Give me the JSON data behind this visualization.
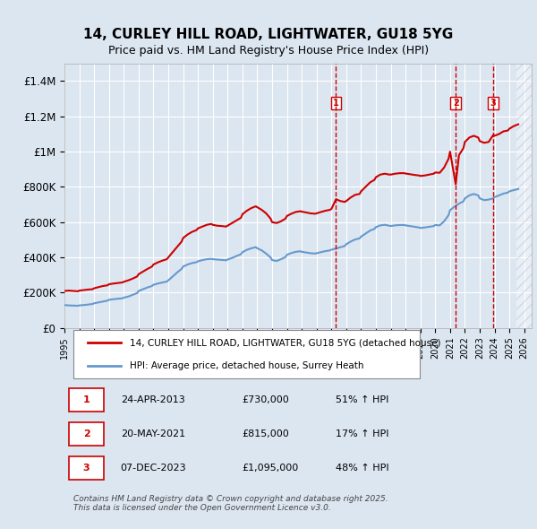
{
  "title": "14, CURLEY HILL ROAD, LIGHTWATER, GU18 5YG",
  "subtitle": "Price paid vs. HM Land Registry's House Price Index (HPI)",
  "title_fontsize": 11,
  "subtitle_fontsize": 9,
  "ylabel": "",
  "xlabel": "",
  "ylim": [
    0,
    1500000
  ],
  "xlim_start": 1995.0,
  "xlim_end": 2026.5,
  "yticks": [
    0,
    200000,
    400000,
    600000,
    800000,
    1000000,
    1200000,
    1400000
  ],
  "ytick_labels": [
    "£0",
    "£200K",
    "£400K",
    "£600K",
    "£800K",
    "£1M",
    "£1.2M",
    "£1.4M"
  ],
  "background_color": "#dce6f1",
  "plot_bg_color": "#dce6f1",
  "grid_color": "#ffffff",
  "hatch_color": "#c0c0c0",
  "red_line_color": "#cc0000",
  "blue_line_color": "#6699cc",
  "transaction_line_color": "#cc0000",
  "transactions": [
    {
      "num": 1,
      "date": "24-APR-2013",
      "price": 730000,
      "pct": "51%",
      "dir": "↑",
      "x": 2013.31
    },
    {
      "num": 2,
      "date": "20-MAY-2021",
      "price": 815000,
      "pct": "17%",
      "dir": "↑",
      "x": 2021.38
    },
    {
      "num": 3,
      "date": "07-DEC-2023",
      "price": 1095000,
      "pct": "48%",
      "dir": "↑",
      "x": 2023.92
    }
  ],
  "legend_line1": "14, CURLEY HILL ROAD, LIGHTWATER, GU18 5YG (detached house)",
  "legend_line2": "HPI: Average price, detached house, Surrey Heath",
  "footer": "Contains HM Land Registry data © Crown copyright and database right 2025.\nThis data is licensed under the Open Government Licence v3.0.",
  "red_data": [
    [
      1995.0,
      210000
    ],
    [
      1995.3,
      212000
    ],
    [
      1995.6,
      210000
    ],
    [
      1995.9,
      208000
    ],
    [
      1996.0,
      212000
    ],
    [
      1996.3,
      215000
    ],
    [
      1996.6,
      218000
    ],
    [
      1996.9,
      220000
    ],
    [
      1997.0,
      225000
    ],
    [
      1997.3,
      232000
    ],
    [
      1997.6,
      238000
    ],
    [
      1997.9,
      242000
    ],
    [
      1998.0,
      248000
    ],
    [
      1998.3,
      252000
    ],
    [
      1998.6,
      255000
    ],
    [
      1998.9,
      258000
    ],
    [
      1999.0,
      262000
    ],
    [
      1999.3,
      270000
    ],
    [
      1999.6,
      280000
    ],
    [
      1999.9,
      292000
    ],
    [
      2000.0,
      305000
    ],
    [
      2000.3,
      320000
    ],
    [
      2000.6,
      335000
    ],
    [
      2000.9,
      348000
    ],
    [
      2001.0,
      360000
    ],
    [
      2001.3,
      372000
    ],
    [
      2001.6,
      382000
    ],
    [
      2001.9,
      390000
    ],
    [
      2002.0,
      400000
    ],
    [
      2002.3,
      430000
    ],
    [
      2002.6,
      460000
    ],
    [
      2002.9,
      490000
    ],
    [
      2003.0,
      510000
    ],
    [
      2003.3,
      530000
    ],
    [
      2003.6,
      545000
    ],
    [
      2003.9,
      555000
    ],
    [
      2004.0,
      565000
    ],
    [
      2004.3,
      575000
    ],
    [
      2004.6,
      585000
    ],
    [
      2004.9,
      590000
    ],
    [
      2005.0,
      585000
    ],
    [
      2005.3,
      580000
    ],
    [
      2005.6,
      578000
    ],
    [
      2005.9,
      575000
    ],
    [
      2006.0,
      580000
    ],
    [
      2006.3,
      595000
    ],
    [
      2006.6,
      610000
    ],
    [
      2006.9,
      625000
    ],
    [
      2007.0,
      645000
    ],
    [
      2007.3,
      665000
    ],
    [
      2007.6,
      680000
    ],
    [
      2007.9,
      690000
    ],
    [
      2008.0,
      685000
    ],
    [
      2008.3,
      670000
    ],
    [
      2008.6,
      650000
    ],
    [
      2008.9,
      620000
    ],
    [
      2009.0,
      600000
    ],
    [
      2009.3,
      595000
    ],
    [
      2009.6,
      605000
    ],
    [
      2009.9,
      620000
    ],
    [
      2010.0,
      635000
    ],
    [
      2010.3,
      648000
    ],
    [
      2010.6,
      658000
    ],
    [
      2010.9,
      662000
    ],
    [
      2011.0,
      660000
    ],
    [
      2011.3,
      655000
    ],
    [
      2011.6,
      650000
    ],
    [
      2011.9,
      648000
    ],
    [
      2012.0,
      650000
    ],
    [
      2012.3,
      658000
    ],
    [
      2012.6,
      665000
    ],
    [
      2012.9,
      670000
    ],
    [
      2013.0,
      675000
    ],
    [
      2013.31,
      730000
    ],
    [
      2013.6,
      720000
    ],
    [
      2013.9,
      715000
    ],
    [
      2014.0,
      720000
    ],
    [
      2014.3,
      740000
    ],
    [
      2014.6,
      755000
    ],
    [
      2014.9,
      760000
    ],
    [
      2015.0,
      775000
    ],
    [
      2015.3,
      800000
    ],
    [
      2015.6,
      825000
    ],
    [
      2015.9,
      840000
    ],
    [
      2016.0,
      855000
    ],
    [
      2016.3,
      870000
    ],
    [
      2016.6,
      875000
    ],
    [
      2016.9,
      870000
    ],
    [
      2017.0,
      870000
    ],
    [
      2017.3,
      875000
    ],
    [
      2017.6,
      878000
    ],
    [
      2017.9,
      878000
    ],
    [
      2018.0,
      876000
    ],
    [
      2018.3,
      872000
    ],
    [
      2018.6,
      868000
    ],
    [
      2018.9,
      865000
    ],
    [
      2019.0,
      862000
    ],
    [
      2019.3,
      865000
    ],
    [
      2019.6,
      870000
    ],
    [
      2019.9,
      875000
    ],
    [
      2020.0,
      882000
    ],
    [
      2020.3,
      880000
    ],
    [
      2020.6,
      910000
    ],
    [
      2020.9,
      960000
    ],
    [
      2021.0,
      1000000
    ],
    [
      2021.38,
      815000
    ],
    [
      2021.6,
      980000
    ],
    [
      2021.9,
      1020000
    ],
    [
      2022.0,
      1055000
    ],
    [
      2022.3,
      1080000
    ],
    [
      2022.6,
      1090000
    ],
    [
      2022.9,
      1080000
    ],
    [
      2023.0,
      1060000
    ],
    [
      2023.3,
      1050000
    ],
    [
      2023.6,
      1055000
    ],
    [
      2023.92,
      1095000
    ],
    [
      2024.0,
      1090000
    ],
    [
      2024.3,
      1100000
    ],
    [
      2024.6,
      1115000
    ],
    [
      2024.9,
      1120000
    ],
    [
      2025.0,
      1130000
    ],
    [
      2025.3,
      1145000
    ],
    [
      2025.6,
      1155000
    ]
  ],
  "blue_data": [
    [
      1995.0,
      130000
    ],
    [
      1995.3,
      128000
    ],
    [
      1995.6,
      127000
    ],
    [
      1995.9,
      126000
    ],
    [
      1996.0,
      128000
    ],
    [
      1996.3,
      130000
    ],
    [
      1996.6,
      133000
    ],
    [
      1996.9,
      136000
    ],
    [
      1997.0,
      140000
    ],
    [
      1997.3,
      145000
    ],
    [
      1997.6,
      150000
    ],
    [
      1997.9,
      155000
    ],
    [
      1998.0,
      160000
    ],
    [
      1998.3,
      163000
    ],
    [
      1998.6,
      166000
    ],
    [
      1998.9,
      168000
    ],
    [
      1999.0,
      172000
    ],
    [
      1999.3,
      178000
    ],
    [
      1999.6,
      188000
    ],
    [
      1999.9,
      198000
    ],
    [
      2000.0,
      210000
    ],
    [
      2000.3,
      220000
    ],
    [
      2000.6,
      230000
    ],
    [
      2000.9,
      238000
    ],
    [
      2001.0,
      245000
    ],
    [
      2001.3,
      252000
    ],
    [
      2001.6,
      258000
    ],
    [
      2001.9,
      263000
    ],
    [
      2002.0,
      270000
    ],
    [
      2002.3,
      292000
    ],
    [
      2002.6,
      315000
    ],
    [
      2002.9,
      335000
    ],
    [
      2003.0,
      348000
    ],
    [
      2003.3,
      360000
    ],
    [
      2003.6,
      368000
    ],
    [
      2003.9,
      373000
    ],
    [
      2004.0,
      378000
    ],
    [
      2004.3,
      385000
    ],
    [
      2004.6,
      390000
    ],
    [
      2004.9,
      392000
    ],
    [
      2005.0,
      390000
    ],
    [
      2005.3,
      388000
    ],
    [
      2005.6,
      386000
    ],
    [
      2005.9,
      384000
    ],
    [
      2006.0,
      388000
    ],
    [
      2006.3,
      397000
    ],
    [
      2006.6,
      408000
    ],
    [
      2006.9,
      418000
    ],
    [
      2007.0,
      430000
    ],
    [
      2007.3,
      443000
    ],
    [
      2007.6,
      452000
    ],
    [
      2007.9,
      458000
    ],
    [
      2008.0,
      452000
    ],
    [
      2008.3,
      440000
    ],
    [
      2008.6,
      422000
    ],
    [
      2008.9,
      400000
    ],
    [
      2009.0,
      385000
    ],
    [
      2009.3,
      380000
    ],
    [
      2009.6,
      390000
    ],
    [
      2009.9,
      402000
    ],
    [
      2010.0,
      415000
    ],
    [
      2010.3,
      425000
    ],
    [
      2010.6,
      432000
    ],
    [
      2010.9,
      435000
    ],
    [
      2011.0,
      432000
    ],
    [
      2011.3,
      428000
    ],
    [
      2011.6,
      424000
    ],
    [
      2011.9,
      422000
    ],
    [
      2012.0,
      424000
    ],
    [
      2012.3,
      430000
    ],
    [
      2012.6,
      436000
    ],
    [
      2012.9,
      440000
    ],
    [
      2013.0,
      444000
    ],
    [
      2013.3,
      450000
    ],
    [
      2013.6,
      458000
    ],
    [
      2013.9,
      465000
    ],
    [
      2014.0,
      475000
    ],
    [
      2014.3,
      490000
    ],
    [
      2014.6,
      502000
    ],
    [
      2014.9,
      508000
    ],
    [
      2015.0,
      518000
    ],
    [
      2015.3,
      535000
    ],
    [
      2015.6,
      552000
    ],
    [
      2015.9,
      562000
    ],
    [
      2016.0,
      572000
    ],
    [
      2016.3,
      582000
    ],
    [
      2016.6,
      585000
    ],
    [
      2016.9,
      580000
    ],
    [
      2017.0,
      578000
    ],
    [
      2017.3,
      582000
    ],
    [
      2017.6,
      584000
    ],
    [
      2017.9,
      584000
    ],
    [
      2018.0,
      582000
    ],
    [
      2018.3,
      578000
    ],
    [
      2018.6,
      574000
    ],
    [
      2018.9,
      570000
    ],
    [
      2019.0,
      567000
    ],
    [
      2019.3,
      570000
    ],
    [
      2019.6,
      574000
    ],
    [
      2019.9,
      578000
    ],
    [
      2020.0,
      584000
    ],
    [
      2020.3,
      582000
    ],
    [
      2020.6,
      605000
    ],
    [
      2020.9,
      640000
    ],
    [
      2021.0,
      668000
    ],
    [
      2021.3,
      688000
    ],
    [
      2021.6,
      705000
    ],
    [
      2021.9,
      718000
    ],
    [
      2022.0,
      735000
    ],
    [
      2022.3,
      752000
    ],
    [
      2022.6,
      760000
    ],
    [
      2022.9,
      752000
    ],
    [
      2023.0,
      735000
    ],
    [
      2023.3,
      725000
    ],
    [
      2023.6,
      728000
    ],
    [
      2023.9,
      735000
    ],
    [
      2024.0,
      742000
    ],
    [
      2024.3,
      752000
    ],
    [
      2024.6,
      762000
    ],
    [
      2024.9,
      768000
    ],
    [
      2025.0,
      775000
    ],
    [
      2025.3,
      782000
    ],
    [
      2025.6,
      788000
    ]
  ]
}
